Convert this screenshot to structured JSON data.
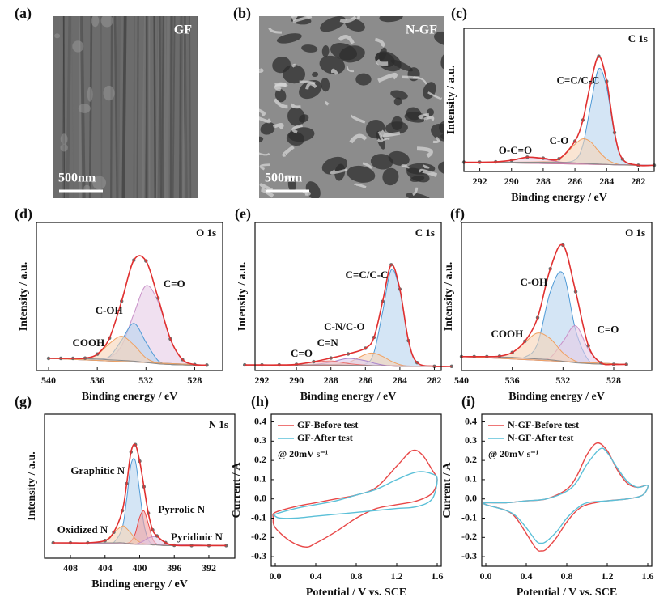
{
  "chart_data": [
    {
      "type": "image",
      "label": "(a)",
      "text": "GF",
      "scale_bar": "500nm"
    },
    {
      "type": "image",
      "label": "(b)",
      "text": "N-GF",
      "scale_bar": "500nm"
    },
    {
      "type": "spectrum",
      "label": "(c)",
      "title": "C 1s",
      "xlabel": "Binding energy / eV",
      "ylabel": "Intensity / a.u.",
      "x": [
        293,
        292,
        291,
        290,
        289,
        288,
        287,
        286,
        285.5,
        285,
        284.5,
        284,
        283.5,
        283,
        282,
        281
      ],
      "xlim": [
        293,
        281
      ],
      "xticks": [
        292,
        290,
        288,
        286,
        284,
        282
      ],
      "ylim": [
        0,
        92
      ],
      "series": [
        {
          "name": "C=C/C-C",
          "color": "#4f9ad6",
          "fill": "#b7d3ee",
          "values": [
            6,
            6,
            6,
            6,
            6,
            6,
            5.8,
            7.5,
            17,
            43,
            66,
            54,
            24,
            8,
            4,
            4
          ]
        },
        {
          "name": "C-O",
          "color": "#f0a060",
          "fill": "#f7d3b5",
          "values": [
            6,
            6,
            6,
            6,
            6.2,
            6.5,
            7.8,
            17.5,
            21,
            19,
            13,
            8,
            5.3,
            4.2,
            4,
            4
          ]
        },
        {
          "name": "O-C=O",
          "color": "#c87aa8",
          "fill": "#ecd0e0",
          "values": [
            6,
            6,
            6.2,
            7.2,
            9,
            8,
            6.2,
            5.5,
            5.3,
            5,
            4.8,
            4.5,
            4.3,
            4.2,
            4,
            4
          ]
        },
        {
          "color": "#8a8a8a",
          "values": [
            6,
            6,
            6,
            6,
            6,
            6,
            5.8,
            5.5,
            5.3,
            5,
            4.8,
            4.5,
            4.3,
            4.2,
            4,
            4
          ]
        },
        {
          "color": "#e03030",
          "markers": true,
          "marker_color": "#6e6e6e",
          "values": [
            6,
            6,
            6.2,
            7.2,
            9.2,
            8.5,
            8.2,
            19.5,
            33,
            57,
            74,
            58,
            25,
            8,
            4,
            4
          ]
        }
      ]
    },
    {
      "type": "spectrum",
      "label": "(d)",
      "title": "O 1s",
      "xlabel": "Binding energy / eV",
      "ylabel": "Intensity / a.u.",
      "x": [
        540,
        539,
        538,
        537,
        536,
        535,
        534,
        533,
        532,
        531,
        530,
        529,
        528,
        527
      ],
      "xlim": [
        541,
        525.7
      ],
      "xticks": [
        540,
        536,
        532,
        528
      ],
      "ylim": [
        0,
        110
      ],
      "series": [
        {
          "name": "C=O",
          "color": "#c890c8",
          "fill": "#e6cce6",
          "values": [
            9,
            9,
            9,
            8.8,
            8.5,
            9.7,
            18.5,
            42,
            63,
            51,
            23.5,
            8.2,
            4.4,
            4
          ]
        },
        {
          "name": "C-OH",
          "color": "#4f9ad6",
          "fill": "#b7d3ee",
          "values": [
            9,
            9,
            9,
            8.8,
            8.5,
            10.4,
            22.5,
            35,
            21,
            7.4,
            4.5,
            4.2,
            4,
            4
          ]
        },
        {
          "name": "COOH",
          "color": "#f0a060",
          "fill": "#f7d3b5",
          "values": [
            9,
            9,
            9,
            9.2,
            11.9,
            20,
            25.5,
            19,
            9.4,
            5.4,
            4.5,
            4.2,
            4,
            4
          ]
        },
        {
          "color": "#8a8a8a",
          "values": [
            9,
            9,
            9,
            8.8,
            8.5,
            8,
            7.5,
            7,
            6,
            5,
            4.5,
            4.2,
            4,
            4
          ]
        },
        {
          "color": "#e03030",
          "markers": true,
          "marker_color": "#6e6e6e",
          "values": [
            9,
            9,
            9,
            9.2,
            12.2,
            24.1,
            51.5,
            82,
            81.4,
            53.8,
            23.5,
            8.2,
            4.4,
            4
          ]
        }
      ]
    },
    {
      "type": "spectrum",
      "label": "(e)",
      "title": "C 1s",
      "xlabel": "Binding energy / eV",
      "ylabel": "Intensity / a.u.",
      "x": [
        293,
        292,
        291,
        290,
        289,
        288,
        287,
        286,
        285.5,
        285,
        284.5,
        284,
        283.5,
        283,
        282,
        281
      ],
      "xlim": [
        292.4,
        281.6
      ],
      "xticks": [
        292,
        290,
        288,
        286,
        284,
        282
      ],
      "ylim": [
        0,
        106
      ],
      "series": [
        {
          "name": "C=C/C-C",
          "color": "#4f9ad6",
          "fill": "#b7d3ee",
          "values": [
            4,
            4,
            4,
            4,
            4,
            4,
            3.8,
            4.6,
            13,
            42,
            72,
            57,
            21.4,
            5.7,
            3,
            3
          ]
        },
        {
          "name": "C-N/C-O",
          "color": "#f0a060",
          "fill": "#f7d3b5",
          "values": [
            4,
            4,
            4,
            4,
            4,
            4,
            5.8,
            11.5,
            12.4,
            10.1,
            6.7,
            4.2,
            3,
            3,
            3,
            3
          ]
        },
        {
          "name": "C=N",
          "color": "#a884cc",
          "fill": "#dccbee",
          "values": [
            4,
            4,
            4,
            4,
            4.3,
            6,
            8.7,
            7,
            5.3,
            4,
            3.2,
            3,
            3,
            3,
            3,
            3
          ]
        },
        {
          "name": "C=O",
          "color": "#e87070",
          "fill": "#f5c0c0",
          "values": [
            4,
            4,
            4,
            4.4,
            6,
            6.9,
            5,
            3.8,
            3.5,
            3.3,
            3.2,
            3,
            3,
            3,
            3,
            3
          ]
        },
        {
          "color": "#8a8a8a",
          "values": [
            4,
            4,
            4,
            4,
            4,
            4,
            3.8,
            3.6,
            3.5,
            3.3,
            3.2,
            3,
            3,
            3,
            3,
            3
          ]
        },
        {
          "color": "#e03030",
          "markers": true,
          "marker_color": "#6e6e6e",
          "values": [
            4,
            4,
            4,
            4.4,
            6.3,
            8.9,
            11.9,
            16,
            23.7,
            49.4,
            75.7,
            58.2,
            21.4,
            5.7,
            3,
            3
          ]
        }
      ]
    },
    {
      "type": "spectrum",
      "label": "(f)",
      "title": "O 1s",
      "xlabel": "Binding energy / eV",
      "ylabel": "Intensity / a.u.",
      "x": [
        540,
        539,
        538,
        537,
        536,
        535,
        534,
        533,
        532,
        531,
        530,
        529,
        528,
        527
      ],
      "xlim": [
        540,
        525
      ],
      "xticks": [
        540,
        536,
        532,
        528
      ],
      "ylim": [
        0,
        96
      ],
      "series": [
        {
          "name": "C-OH",
          "color": "#4f9ad6",
          "fill": "#b7d3ee",
          "values": [
            9,
            9,
            9,
            8.8,
            8.5,
            8.7,
            17.5,
            51,
            63,
            26,
            6.8,
            4.2,
            4,
            4
          ]
        },
        {
          "name": "C=O",
          "color": "#c890c8",
          "fill": "#e6cce6",
          "values": [
            9,
            9,
            9,
            8.8,
            8.5,
            8,
            7.5,
            8.4,
            18.8,
            29,
            13.8,
            5,
            4,
            4
          ]
        },
        {
          "name": "COOH",
          "color": "#f0a060",
          "fill": "#f7d3b5",
          "values": [
            9,
            9,
            9,
            9.3,
            11.7,
            18.3,
            24.3,
            20.6,
            11.5,
            6.1,
            4.5,
            4.2,
            4,
            4
          ]
        },
        {
          "color": "#8a8a8a",
          "values": [
            9,
            9,
            9,
            8.8,
            8.5,
            8,
            7.5,
            7,
            6,
            5,
            4.5,
            4.2,
            4,
            4
          ]
        },
        {
          "color": "#e03030",
          "markers": true,
          "marker_color": "#6e6e6e",
          "values": [
            9,
            9,
            9,
            9.3,
            11.7,
            19,
            34.3,
            66,
            81.3,
            51.1,
            16.1,
            5,
            4,
            4
          ]
        }
      ]
    },
    {
      "type": "spectrum",
      "label": "(g)",
      "title": "N 1s",
      "xlabel": "Binding energy / eV",
      "ylabel": "Intensity / a.u.",
      "x": [
        410,
        408,
        406,
        404,
        403,
        402,
        401.5,
        401,
        400.5,
        400,
        399.5,
        399,
        398.5,
        398,
        397,
        396,
        394,
        392,
        390
      ],
      "xlim": [
        411,
        389
      ],
      "xticks": [
        408,
        404,
        400,
        396,
        392
      ],
      "ylim": [
        0,
        103
      ],
      "series": [
        {
          "name": "Graphitic N",
          "color": "#4f9ad6",
          "fill": "#b7d3ee",
          "values": [
            11,
            11,
            11,
            11,
            11.3,
            22,
            42.5,
            67,
            69.5,
            47.6,
            24.3,
            13.2,
            9.9,
            9.5,
            9,
            9,
            9,
            9,
            9
          ]
        },
        {
          "name": "Pyrrolic N",
          "color": "#e84848",
          "fill": "#f3a0a0",
          "values": [
            11,
            11,
            11,
            11,
            11,
            11,
            10.7,
            12.1,
            17.8,
            29.2,
            33.8,
            24.6,
            14,
            10.2,
            9,
            9,
            9,
            9,
            9
          ]
        },
        {
          "name": "Oxidized N",
          "color": "#f0a060",
          "fill": "#f7d3b5",
          "values": [
            11,
            11,
            11,
            12.6,
            18.3,
            23,
            21.1,
            17.8,
            13.9,
            11.6,
            10.5,
            10,
            9.5,
            9.5,
            9,
            9,
            9,
            9,
            9
          ]
        },
        {
          "name": "Pyridinic N",
          "color": "#c890c8",
          "fill": "#e6cce6",
          "values": [
            11,
            11,
            11,
            11,
            11,
            11,
            10.5,
            10.5,
            10,
            11,
            12.5,
            14.4,
            15.3,
            15.2,
            11.1,
            9.2,
            9,
            9,
            9
          ]
        },
        {
          "color": "#8a8a8a",
          "values": [
            11,
            11,
            11,
            11,
            11,
            11,
            10.5,
            10.5,
            10,
            10,
            10,
            10,
            9.5,
            9.5,
            9,
            9,
            9,
            9,
            9
          ]
        },
        {
          "color": "#e03030",
          "markers": true,
          "marker_color": "#6e6e6e",
          "values": [
            11,
            11,
            11,
            12.6,
            18.6,
            34,
            53.3,
            76,
            81.2,
            69.4,
            51.1,
            32.2,
            20.2,
            15.9,
            11.1,
            9.2,
            9,
            9,
            9
          ]
        }
      ]
    },
    {
      "type": "cv",
      "label": "(h)",
      "xlabel": "Potential / V vs. SCE",
      "ylabel": "Current / A",
      "xlim": [
        -0.04,
        1.64
      ],
      "xticks": [
        {
          "value": 0,
          "label": "0.0"
        },
        0.4,
        0.8,
        1.2,
        1.6
      ],
      "ylim": [
        -0.35,
        0.44
      ],
      "yticks": [
        -0.3,
        -0.2,
        -0.1,
        {
          "value": 0,
          "label": "0.0"
        },
        0.1,
        0.2,
        0.3,
        0.4
      ],
      "legend": "upper left",
      "annotation": "@ 20mV s⁻¹",
      "series": [
        {
          "name": "GF-Before test",
          "color": "#e84848",
          "x": [
            0.0,
            0.2,
            0.4,
            0.6,
            0.8,
            1.0,
            1.2,
            1.35,
            1.45,
            1.55,
            1.6,
            1.55,
            1.4,
            1.2,
            1.0,
            0.8,
            0.6,
            0.4,
            0.3,
            0.15,
            0.0,
            -0.02
          ],
          "values": [
            -0.07,
            -0.04,
            -0.02,
            0.0,
            0.02,
            0.06,
            0.17,
            0.25,
            0.23,
            0.15,
            0.1,
            0.03,
            -0.01,
            -0.03,
            -0.05,
            -0.1,
            -0.17,
            -0.23,
            -0.25,
            -0.22,
            -0.15,
            -0.1
          ]
        },
        {
          "name": "GF-After test",
          "color": "#5bc0d8",
          "x": [
            0.0,
            0.2,
            0.4,
            0.6,
            0.8,
            1.0,
            1.2,
            1.4,
            1.55,
            1.6,
            1.55,
            1.4,
            1.2,
            1.0,
            0.8,
            0.6,
            0.4,
            0.2,
            0.05,
            0.0
          ],
          "values": [
            -0.08,
            -0.05,
            -0.03,
            -0.01,
            0.02,
            0.05,
            0.1,
            0.14,
            0.13,
            0.1,
            0.0,
            -0.04,
            -0.05,
            -0.06,
            -0.07,
            -0.08,
            -0.09,
            -0.1,
            -0.1,
            -0.09
          ]
        }
      ]
    },
    {
      "type": "cv",
      "label": "(i)",
      "xlabel": "Potential / V vs. SCE",
      "ylabel": "Current / A",
      "xlim": [
        -0.04,
        1.64
      ],
      "xticks": [
        {
          "value": 0,
          "label": "0.0"
        },
        0.4,
        0.8,
        1.2,
        1.6
      ],
      "ylim": [
        -0.35,
        0.44
      ],
      "yticks": [
        -0.3,
        -0.2,
        -0.1,
        {
          "value": 0,
          "label": "0.0"
        },
        0.1,
        0.2,
        0.3,
        0.4
      ],
      "legend": "upper left",
      "annotation": "@ 20mV s⁻¹",
      "series": [
        {
          "name": "N-GF-Before test",
          "color": "#e84848",
          "x": [
            0.0,
            0.2,
            0.4,
            0.6,
            0.8,
            0.9,
            1.0,
            1.1,
            1.2,
            1.3,
            1.4,
            1.5,
            1.6,
            1.55,
            1.4,
            1.2,
            1.0,
            0.9,
            0.8,
            0.7,
            0.6,
            0.55,
            0.5,
            0.4,
            0.3,
            0.2,
            0.0
          ],
          "values": [
            -0.02,
            -0.02,
            -0.01,
            0.0,
            0.05,
            0.12,
            0.23,
            0.29,
            0.25,
            0.15,
            0.08,
            0.06,
            0.07,
            0.02,
            0.0,
            -0.01,
            -0.03,
            -0.06,
            -0.12,
            -0.2,
            -0.26,
            -0.27,
            -0.26,
            -0.18,
            -0.1,
            -0.06,
            -0.03
          ]
        },
        {
          "name": "N-GF-After test",
          "color": "#5bc0d8",
          "x": [
            0.0,
            0.2,
            0.4,
            0.6,
            0.8,
            0.9,
            1.0,
            1.13,
            1.2,
            1.3,
            1.4,
            1.5,
            1.6,
            1.55,
            1.4,
            1.2,
            1.0,
            0.9,
            0.8,
            0.7,
            0.6,
            0.55,
            0.5,
            0.4,
            0.3,
            0.2,
            0.0
          ],
          "values": [
            -0.02,
            -0.02,
            -0.01,
            0.0,
            0.04,
            0.09,
            0.18,
            0.26,
            0.24,
            0.16,
            0.09,
            0.06,
            0.07,
            0.02,
            0.0,
            -0.01,
            -0.02,
            -0.05,
            -0.1,
            -0.17,
            -0.22,
            -0.23,
            -0.22,
            -0.15,
            -0.09,
            -0.06,
            -0.03
          ]
        }
      ]
    }
  ]
}
